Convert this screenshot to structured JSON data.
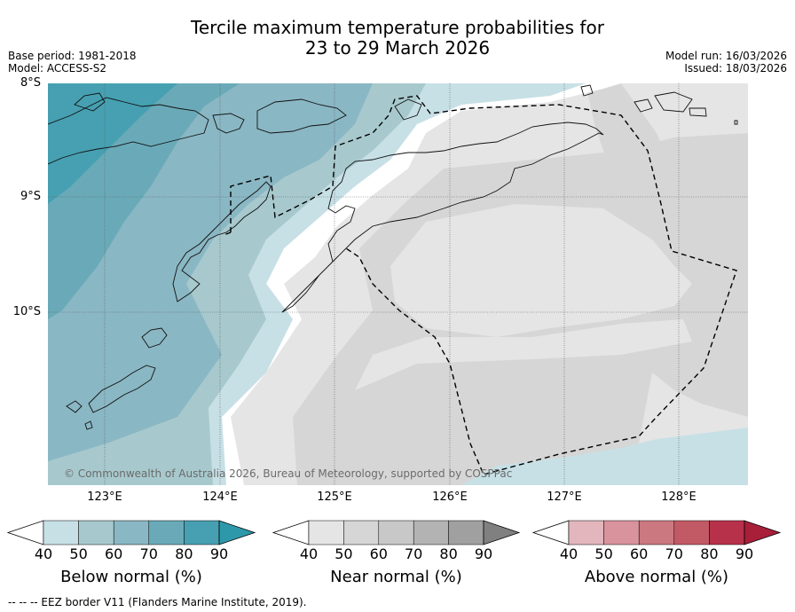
{
  "title": {
    "line1": "Tercile maximum temperature probabilities for",
    "line2": "23 to 29 March 2026"
  },
  "base_period": "Base period: 1981-2018",
  "model": "Model: ACCESS-S2",
  "model_run": "Model run: 16/03/2026",
  "issued": "Issued: 18/03/2026",
  "lat_labels": [
    "8°S",
    "9°S",
    "10°S"
  ],
  "lon_labels": [
    "123°E",
    "124°E",
    "125°E",
    "126°E",
    "127°E",
    "128°E"
  ],
  "copyright": "© Commonwealth of Australia 2026, Bureau of Meteorology, supported by COSPPac",
  "footnote": "-- -- -- EEZ border V11 (Flanders Marine Institute, 2019).",
  "colorbars": [
    {
      "label": "Below normal (%)",
      "ticks": [
        "40",
        "50",
        "60",
        "70",
        "80",
        "90"
      ],
      "colors": [
        "#c7e0e6",
        "#a7c9cd",
        "#8ab7c4",
        "#6aaab8",
        "#46a0b1",
        "#2e98ab"
      ]
    },
    {
      "label": "Near normal (%)",
      "ticks": [
        "40",
        "50",
        "60",
        "70",
        "80",
        "90"
      ],
      "colors": [
        "#e5e5e5",
        "#d6d6d6",
        "#c8c8c8",
        "#b3b3b3",
        "#a0a0a0",
        "#808080"
      ]
    },
    {
      "label": "Above normal (%)",
      "ticks": [
        "40",
        "50",
        "60",
        "70",
        "80",
        "90"
      ],
      "colors": [
        "#e2b6bc",
        "#d9939c",
        "#cc7880",
        "#c25a66",
        "#b7314a",
        "#a81f3a"
      ]
    }
  ]
}
